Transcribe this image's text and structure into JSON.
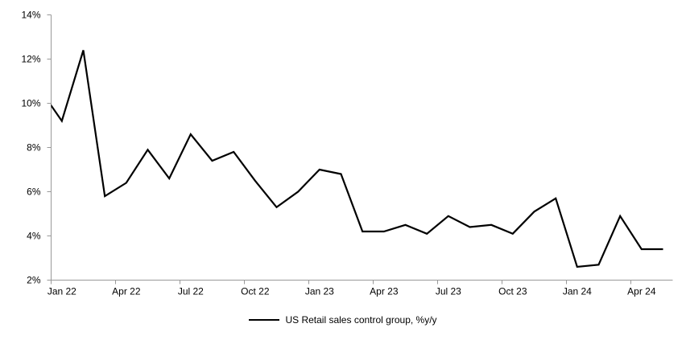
{
  "chart_data": {
    "type": "line",
    "title": "",
    "xlabel": "",
    "ylabel": "",
    "ylim": [
      2,
      14
    ],
    "y_tick_step": 2,
    "y_tick_labels": [
      "2%",
      "4%",
      "6%",
      "8%",
      "10%",
      "12%",
      "14%"
    ],
    "x_tick_labels": [
      "Jan 22",
      "Apr 22",
      "Jul 22",
      "Oct 22",
      "Jan 23",
      "Apr 23",
      "Jul 23",
      "Oct 23",
      "Jan 24",
      "Apr 24"
    ],
    "grid": false,
    "legend_position": "bottom",
    "axis_color": "#999999",
    "series": [
      {
        "name": "US Retail sales control group, %y/y",
        "color": "#000000",
        "x": [
          "Dec 21",
          "Jan 22",
          "Feb 22",
          "Mar 22",
          "Apr 22",
          "May 22",
          "Jun 22",
          "Jul 22",
          "Aug 22",
          "Sep 22",
          "Oct 22",
          "Nov 22",
          "Dec 22",
          "Jan 23",
          "Feb 23",
          "Mar 23",
          "Apr 23",
          "May 23",
          "Jun 23",
          "Jul 23",
          "Aug 23",
          "Sep 23",
          "Oct 23",
          "Nov 23",
          "Dec 23",
          "Jan 24",
          "Feb 24",
          "Mar 24",
          "Apr 24",
          "May 24"
        ],
        "values": [
          10.6,
          9.2,
          12.4,
          5.8,
          6.4,
          7.9,
          6.6,
          8.6,
          7.4,
          7.8,
          6.5,
          5.3,
          6.0,
          7.0,
          6.8,
          4.2,
          4.2,
          4.5,
          4.1,
          4.9,
          4.4,
          4.5,
          4.1,
          5.1,
          5.7,
          2.6,
          2.7,
          4.9,
          3.4,
          3.4
        ]
      }
    ]
  },
  "legend": {
    "label": "US Retail sales control group, %y/y"
  }
}
